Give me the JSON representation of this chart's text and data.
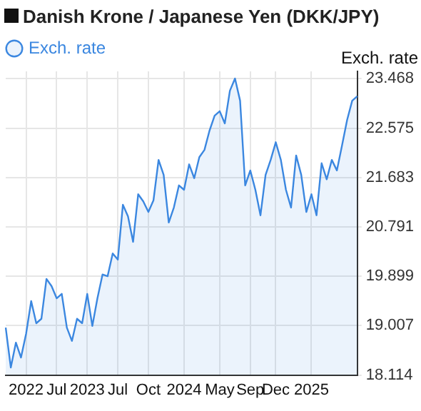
{
  "chart_data": {
    "type": "area",
    "title": "Danish Krone / Japanese Yen (DKK/JPY)",
    "ylabel": "Exch. rate",
    "categories": [
      null,
      null,
      null,
      null,
      "2022",
      null,
      null,
      null,
      null,
      null,
      "Jul",
      null,
      null,
      null,
      null,
      null,
      "2023",
      null,
      null,
      null,
      null,
      null,
      "Jul",
      null,
      null,
      null,
      null,
      null,
      "Oct",
      null,
      null,
      null,
      null,
      null,
      null,
      "2024",
      null,
      null,
      null,
      null,
      null,
      null,
      "May",
      null,
      null,
      null,
      null,
      null,
      "Sep",
      null,
      null,
      null,
      null,
      "Dec",
      null,
      null,
      null,
      null,
      null,
      null,
      "2025",
      null,
      null,
      null,
      null,
      null,
      null,
      null,
      null,
      null
    ],
    "series": [
      {
        "name": "Exch. rate",
        "color": "#3b87e0",
        "values": [
          18.97,
          18.25,
          18.7,
          18.43,
          18.86,
          19.45,
          19.05,
          19.13,
          19.85,
          19.72,
          19.5,
          19.58,
          18.97,
          18.73,
          19.13,
          19.05,
          19.58,
          19.0,
          19.5,
          19.93,
          19.9,
          20.31,
          20.2,
          21.19,
          20.98,
          20.52,
          21.38,
          21.25,
          21.06,
          21.27,
          22.0,
          21.73,
          20.87,
          21.14,
          21.54,
          21.46,
          21.92,
          21.67,
          22.05,
          22.18,
          22.53,
          22.8,
          22.88,
          22.66,
          23.25,
          23.47,
          23.07,
          21.54,
          21.81,
          21.46,
          21.0,
          21.73,
          22.0,
          22.32,
          22.0,
          21.46,
          21.14,
          22.08,
          21.73,
          21.06,
          21.38,
          21.0,
          21.94,
          21.65,
          22.0,
          21.81,
          22.26,
          22.72,
          23.07,
          23.15
        ]
      }
    ],
    "ylim": [
      18.114,
      23.6
    ],
    "yticks": [
      18.114,
      19.007,
      19.899,
      20.791,
      21.683,
      22.575,
      23.468
    ],
    "grid": true,
    "legend": "top left",
    "marker": "none"
  }
}
